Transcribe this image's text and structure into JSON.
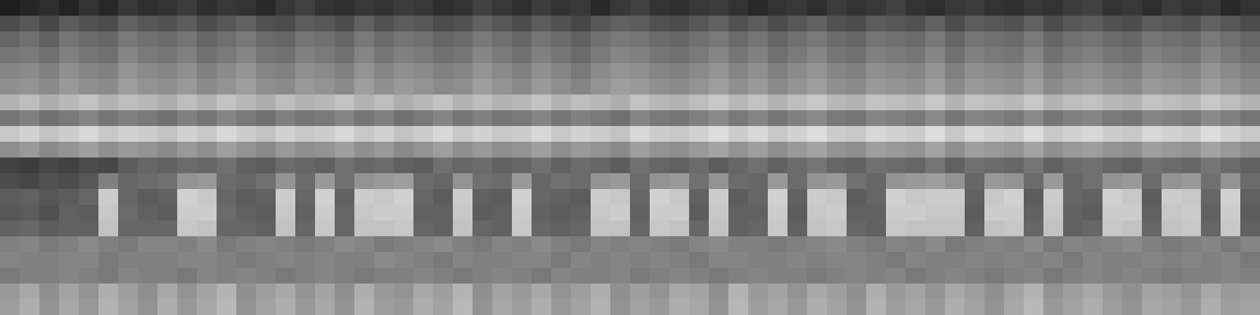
{
  "chart_data": {
    "type": "heatmap",
    "tick_labels": false,
    "color": "gray",
    "zlim": [
      0,
      100
    ],
    "cells": [
      [
        12,
        15,
        18,
        14,
        20,
        16,
        22,
        18,
        20,
        24,
        18,
        22,
        20,
        16,
        22,
        25,
        20,
        18,
        22,
        20,
        24,
        22,
        18,
        20,
        26,
        22,
        18,
        24,
        20,
        22,
        16,
        22,
        25,
        20,
        18,
        22,
        24,
        20,
        16,
        20,
        22,
        18,
        24,
        20,
        22,
        26,
        20,
        18,
        22,
        24,
        20,
        18,
        22,
        20,
        24,
        26,
        20,
        22,
        18,
        24,
        20,
        22,
        16,
        20
      ],
      [
        30,
        34,
        28,
        36,
        32,
        30,
        38,
        34,
        32,
        36,
        30,
        34,
        38,
        32,
        30,
        36,
        34,
        30,
        38,
        32,
        36,
        34,
        30,
        32,
        38,
        34,
        30,
        36,
        32,
        28,
        34,
        38,
        36,
        32,
        30,
        34,
        38,
        32,
        36,
        30,
        34,
        38,
        32,
        30,
        36,
        34,
        32,
        38,
        30,
        36,
        34,
        32,
        38,
        30,
        34,
        36,
        32,
        30,
        36,
        34,
        32,
        38,
        34,
        30
      ],
      [
        40,
        44,
        38,
        46,
        42,
        40,
        48,
        44,
        42,
        46,
        40,
        44,
        48,
        42,
        40,
        46,
        44,
        40,
        48,
        42,
        46,
        44,
        40,
        42,
        48,
        44,
        40,
        46,
        42,
        38,
        44,
        48,
        46,
        42,
        40,
        44,
        48,
        42,
        46,
        40,
        44,
        48,
        42,
        40,
        46,
        44,
        42,
        48,
        40,
        46,
        44,
        42,
        48,
        40,
        44,
        46,
        42,
        40,
        46,
        44,
        42,
        48,
        44,
        40
      ],
      [
        46,
        48,
        44,
        50,
        46,
        44,
        52,
        48,
        46,
        50,
        44,
        48,
        52,
        46,
        44,
        50,
        48,
        44,
        52,
        46,
        50,
        48,
        44,
        46,
        52,
        48,
        44,
        50,
        46,
        42,
        48,
        52,
        50,
        46,
        44,
        48,
        52,
        46,
        50,
        44,
        48,
        52,
        46,
        44,
        50,
        48,
        46,
        52,
        44,
        50,
        48,
        46,
        52,
        44,
        48,
        50,
        46,
        44,
        50,
        48,
        46,
        52,
        48,
        44
      ],
      [
        52,
        54,
        50,
        56,
        52,
        50,
        58,
        54,
        52,
        56,
        50,
        54,
        58,
        52,
        50,
        56,
        54,
        50,
        58,
        52,
        56,
        54,
        50,
        52,
        58,
        54,
        50,
        56,
        52,
        48,
        54,
        58,
        56,
        52,
        50,
        54,
        58,
        52,
        56,
        50,
        54,
        58,
        52,
        50,
        56,
        54,
        52,
        58,
        50,
        56,
        54,
        52,
        58,
        50,
        54,
        56,
        52,
        50,
        56,
        54,
        52,
        58,
        54,
        50
      ],
      [
        56,
        58,
        54,
        60,
        56,
        54,
        62,
        58,
        56,
        60,
        54,
        58,
        62,
        56,
        54,
        60,
        58,
        54,
        62,
        56,
        60,
        58,
        54,
        56,
        62,
        58,
        54,
        60,
        56,
        52,
        58,
        62,
        60,
        56,
        54,
        58,
        62,
        56,
        60,
        54,
        58,
        62,
        56,
        54,
        60,
        58,
        56,
        62,
        54,
        60,
        58,
        56,
        62,
        54,
        58,
        60,
        56,
        54,
        60,
        58,
        56,
        62,
        58,
        54
      ],
      [
        70,
        74,
        68,
        72,
        76,
        70,
        74,
        72,
        68,
        74,
        70,
        76,
        72,
        68,
        74,
        70,
        72,
        76,
        70,
        74,
        68,
        72,
        76,
        70,
        74,
        70,
        72,
        76,
        70,
        74,
        72,
        68,
        76,
        72,
        70,
        74,
        78,
        72,
        76,
        70,
        74,
        78,
        72,
        70,
        76,
        74,
        72,
        78,
        70,
        76,
        74,
        72,
        78,
        70,
        74,
        76,
        72,
        70,
        76,
        74,
        72,
        78,
        74,
        70
      ],
      [
        46,
        50,
        44,
        48,
        52,
        46,
        50,
        48,
        44,
        50,
        46,
        52,
        48,
        44,
        50,
        46,
        48,
        52,
        46,
        50,
        44,
        48,
        52,
        46,
        50,
        46,
        48,
        52,
        46,
        50,
        48,
        44,
        52,
        48,
        46,
        50,
        54,
        48,
        52,
        46,
        50,
        54,
        48,
        46,
        52,
        50,
        48,
        54,
        46,
        52,
        50,
        48,
        54,
        46,
        50,
        52,
        48,
        46,
        52,
        50,
        48,
        54,
        50,
        46
      ],
      [
        78,
        82,
        76,
        80,
        84,
        78,
        82,
        80,
        76,
        82,
        78,
        84,
        80,
        76,
        82,
        78,
        80,
        84,
        78,
        82,
        76,
        80,
        84,
        78,
        82,
        78,
        80,
        84,
        78,
        82,
        80,
        76,
        84,
        80,
        78,
        82,
        86,
        80,
        84,
        78,
        82,
        86,
        80,
        78,
        84,
        82,
        80,
        86,
        78,
        84,
        82,
        80,
        86,
        78,
        82,
        84,
        80,
        78,
        84,
        82,
        80,
        86,
        82,
        78
      ],
      [
        56,
        60,
        54,
        58,
        62,
        56,
        60,
        58,
        54,
        60,
        56,
        62,
        58,
        54,
        60,
        56,
        58,
        62,
        56,
        60,
        54,
        58,
        62,
        56,
        60,
        56,
        58,
        62,
        56,
        60,
        58,
        54,
        62,
        58,
        56,
        60,
        64,
        58,
        62,
        56,
        60,
        64,
        58,
        56,
        62,
        60,
        58,
        64,
        56,
        62,
        60,
        58,
        64,
        56,
        60,
        62,
        58,
        56,
        62,
        60,
        58,
        64,
        60,
        56
      ],
      [
        26,
        24,
        28,
        26,
        30,
        28,
        36,
        40,
        38,
        42,
        40,
        44,
        38,
        36,
        42,
        40,
        38,
        44,
        40,
        42,
        38,
        36,
        44,
        40,
        42,
        38,
        40,
        44,
        38,
        42,
        40,
        36,
        44,
        40,
        38,
        42,
        36,
        40,
        44,
        38,
        42,
        46,
        40,
        38,
        44,
        42,
        40,
        46,
        38,
        44,
        42,
        40,
        46,
        38,
        42,
        44,
        40,
        38,
        44,
        42,
        40,
        46,
        42,
        38
      ],
      [
        30,
        28,
        32,
        30,
        34,
        50,
        40,
        42,
        44,
        58,
        60,
        42,
        40,
        44,
        58,
        42,
        60,
        44,
        58,
        60,
        62,
        42,
        40,
        58,
        44,
        42,
        60,
        40,
        44,
        42,
        58,
        60,
        42,
        58,
        60,
        44,
        58,
        42,
        40,
        60,
        42,
        58,
        60,
        44,
        40,
        58,
        60,
        62,
        58,
        40,
        60,
        58,
        42,
        60,
        40,
        44,
        58,
        60,
        42,
        58,
        60,
        44,
        58,
        42
      ],
      [
        36,
        38,
        34,
        36,
        40,
        80,
        40,
        36,
        38,
        82,
        78,
        40,
        36,
        38,
        80,
        40,
        82,
        38,
        80,
        78,
        82,
        40,
        36,
        80,
        38,
        36,
        82,
        40,
        38,
        36,
        80,
        78,
        40,
        82,
        78,
        38,
        80,
        36,
        40,
        82,
        38,
        80,
        78,
        36,
        40,
        82,
        78,
        80,
        80,
        38,
        78,
        82,
        36,
        80,
        40,
        38,
        82,
        78,
        36,
        80,
        78,
        40,
        82,
        38
      ],
      [
        34,
        36,
        32,
        38,
        36,
        78,
        42,
        38,
        36,
        80,
        80,
        42,
        38,
        36,
        78,
        38,
        80,
        40,
        78,
        80,
        80,
        38,
        38,
        78,
        36,
        38,
        80,
        38,
        36,
        38,
        78,
        80,
        38,
        80,
        80,
        36,
        78,
        38,
        38,
        80,
        36,
        78,
        80,
        38,
        38,
        80,
        80,
        78,
        78,
        36,
        80,
        80,
        38,
        78,
        38,
        36,
        80,
        80,
        38,
        78,
        80,
        38,
        80,
        36
      ],
      [
        38,
        40,
        36,
        38,
        38,
        76,
        40,
        40,
        40,
        78,
        76,
        40,
        40,
        38,
        76,
        40,
        78,
        40,
        76,
        76,
        78,
        40,
        38,
        76,
        40,
        38,
        78,
        40,
        38,
        40,
        76,
        76,
        40,
        78,
        76,
        40,
        76,
        38,
        40,
        78,
        38,
        76,
        78,
        40,
        38,
        78,
        76,
        76,
        76,
        38,
        76,
        78,
        40,
        76,
        38,
        40,
        78,
        76,
        40,
        76,
        78,
        40,
        78,
        38
      ],
      [
        50,
        52,
        48,
        50,
        54,
        50,
        48,
        52,
        52,
        50,
        54,
        48,
        50,
        52,
        50,
        48,
        50,
        54,
        52,
        48,
        50,
        52,
        54,
        50,
        48,
        52,
        50,
        54,
        50,
        48,
        52,
        50,
        52,
        50,
        48,
        52,
        54,
        50,
        50,
        48,
        50,
        52,
        54,
        50,
        48,
        52,
        50,
        54,
        48,
        50,
        52,
        50,
        54,
        48,
        52,
        50,
        52,
        54,
        50,
        48,
        50,
        52,
        48,
        52
      ],
      [
        52,
        50,
        50,
        52,
        52,
        48,
        50,
        50,
        50,
        52,
        52,
        50,
        48,
        50,
        52,
        50,
        52,
        50,
        50,
        54,
        52,
        50,
        48,
        52,
        50,
        50,
        52,
        52,
        48,
        52,
        50,
        52,
        50,
        52,
        50,
        48,
        52,
        52,
        50,
        50,
        52,
        50,
        52,
        52,
        50,
        48,
        52,
        50,
        50,
        52,
        50,
        52,
        50,
        52,
        48,
        52,
        50,
        50,
        52,
        50,
        52,
        50,
        52,
        48
      ],
      [
        48,
        50,
        50,
        52,
        50,
        48,
        52,
        50,
        50,
        48,
        52,
        50,
        52,
        50,
        48,
        50,
        52,
        50,
        48,
        50,
        50,
        52,
        50,
        48,
        50,
        52,
        50,
        48,
        52,
        50,
        50,
        52,
        48,
        50,
        52,
        50,
        48,
        50,
        52,
        50,
        50,
        48,
        50,
        52,
        50,
        52,
        48,
        50,
        52,
        50,
        48,
        50,
        52,
        48,
        50,
        52,
        50,
        52,
        50,
        48,
        50,
        50,
        52,
        50
      ],
      [
        60,
        66,
        56,
        64,
        58,
        68,
        62,
        56,
        66,
        58,
        64,
        70,
        56,
        62,
        66,
        58,
        64,
        56,
        68,
        60,
        58,
        66,
        62,
        70,
        56,
        64,
        60,
        66,
        58,
        62,
        68,
        56,
        62,
        58,
        66,
        64,
        56,
        70,
        60,
        64,
        58,
        66,
        62,
        56,
        68,
        60,
        64,
        58,
        66,
        62,
        56,
        64,
        70,
        58,
        62,
        66,
        60,
        56,
        64,
        62,
        58,
        66,
        60,
        62
      ],
      [
        62,
        68,
        58,
        66,
        60,
        70,
        64,
        58,
        68,
        60,
        66,
        72,
        58,
        64,
        68,
        60,
        66,
        58,
        70,
        62,
        60,
        68,
        64,
        72,
        58,
        66,
        62,
        68,
        60,
        64,
        70,
        58,
        64,
        60,
        68,
        66,
        58,
        72,
        62,
        66,
        60,
        68,
        64,
        58,
        70,
        62,
        66,
        60,
        68,
        64,
        58,
        66,
        72,
        60,
        64,
        68,
        62,
        58,
        66,
        64,
        60,
        68,
        62,
        64
      ]
    ]
  }
}
